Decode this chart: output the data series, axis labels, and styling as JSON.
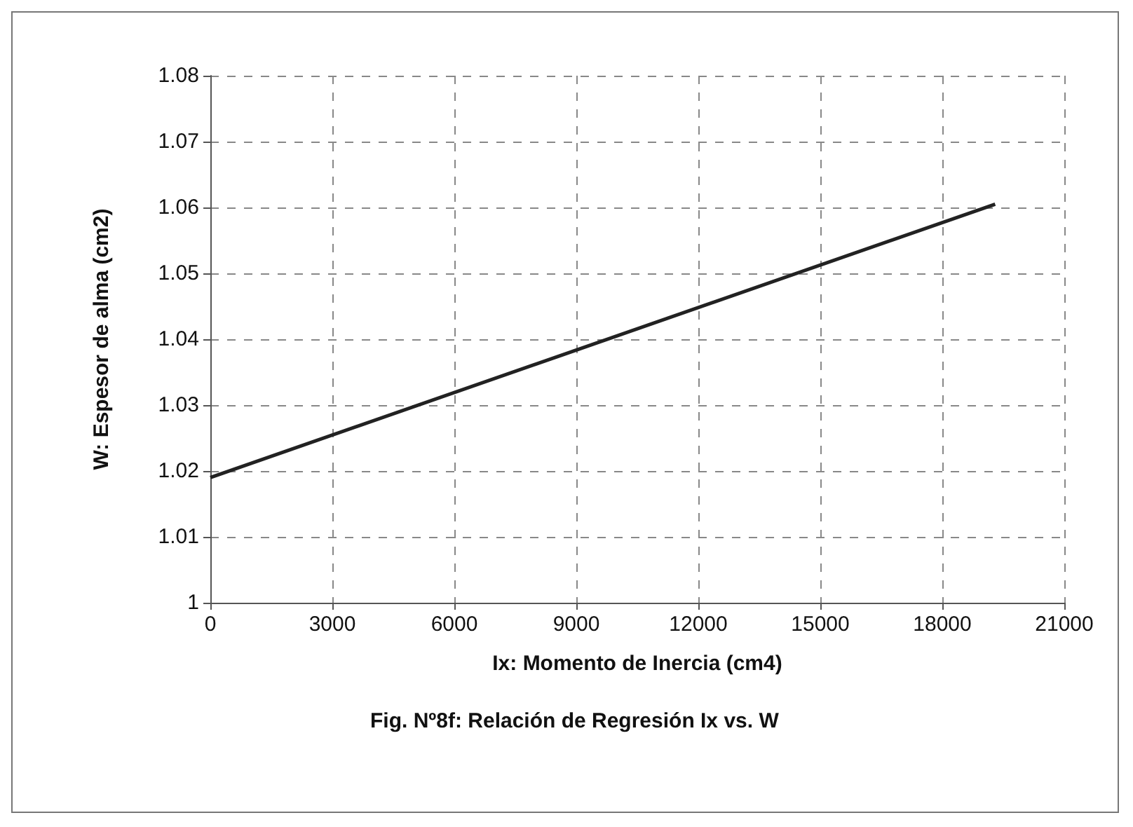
{
  "chart_data": {
    "type": "line",
    "title": "Fig. Nº8f: Relación de Regresión Ix vs. W",
    "xlabel": "Ix: Momento de Inercia (cm4)",
    "ylabel": "W: Espesor de alma (cm2)",
    "series": [
      {
        "color": "#222222",
        "x": [
          0,
          19300
        ],
        "values": [
          1.019,
          1.0605
        ]
      }
    ],
    "xlim": [
      0,
      21000
    ],
    "xticks": [
      0,
      3000,
      6000,
      9000,
      12000,
      15000,
      18000,
      21000
    ],
    "ylim": [
      1,
      1.08
    ],
    "yticks": [
      1,
      1.01,
      1.02,
      1.03,
      1.04,
      1.05,
      1.06,
      1.07,
      1.08
    ],
    "grid": true,
    "marker": "none",
    "line_style": "solid"
  }
}
